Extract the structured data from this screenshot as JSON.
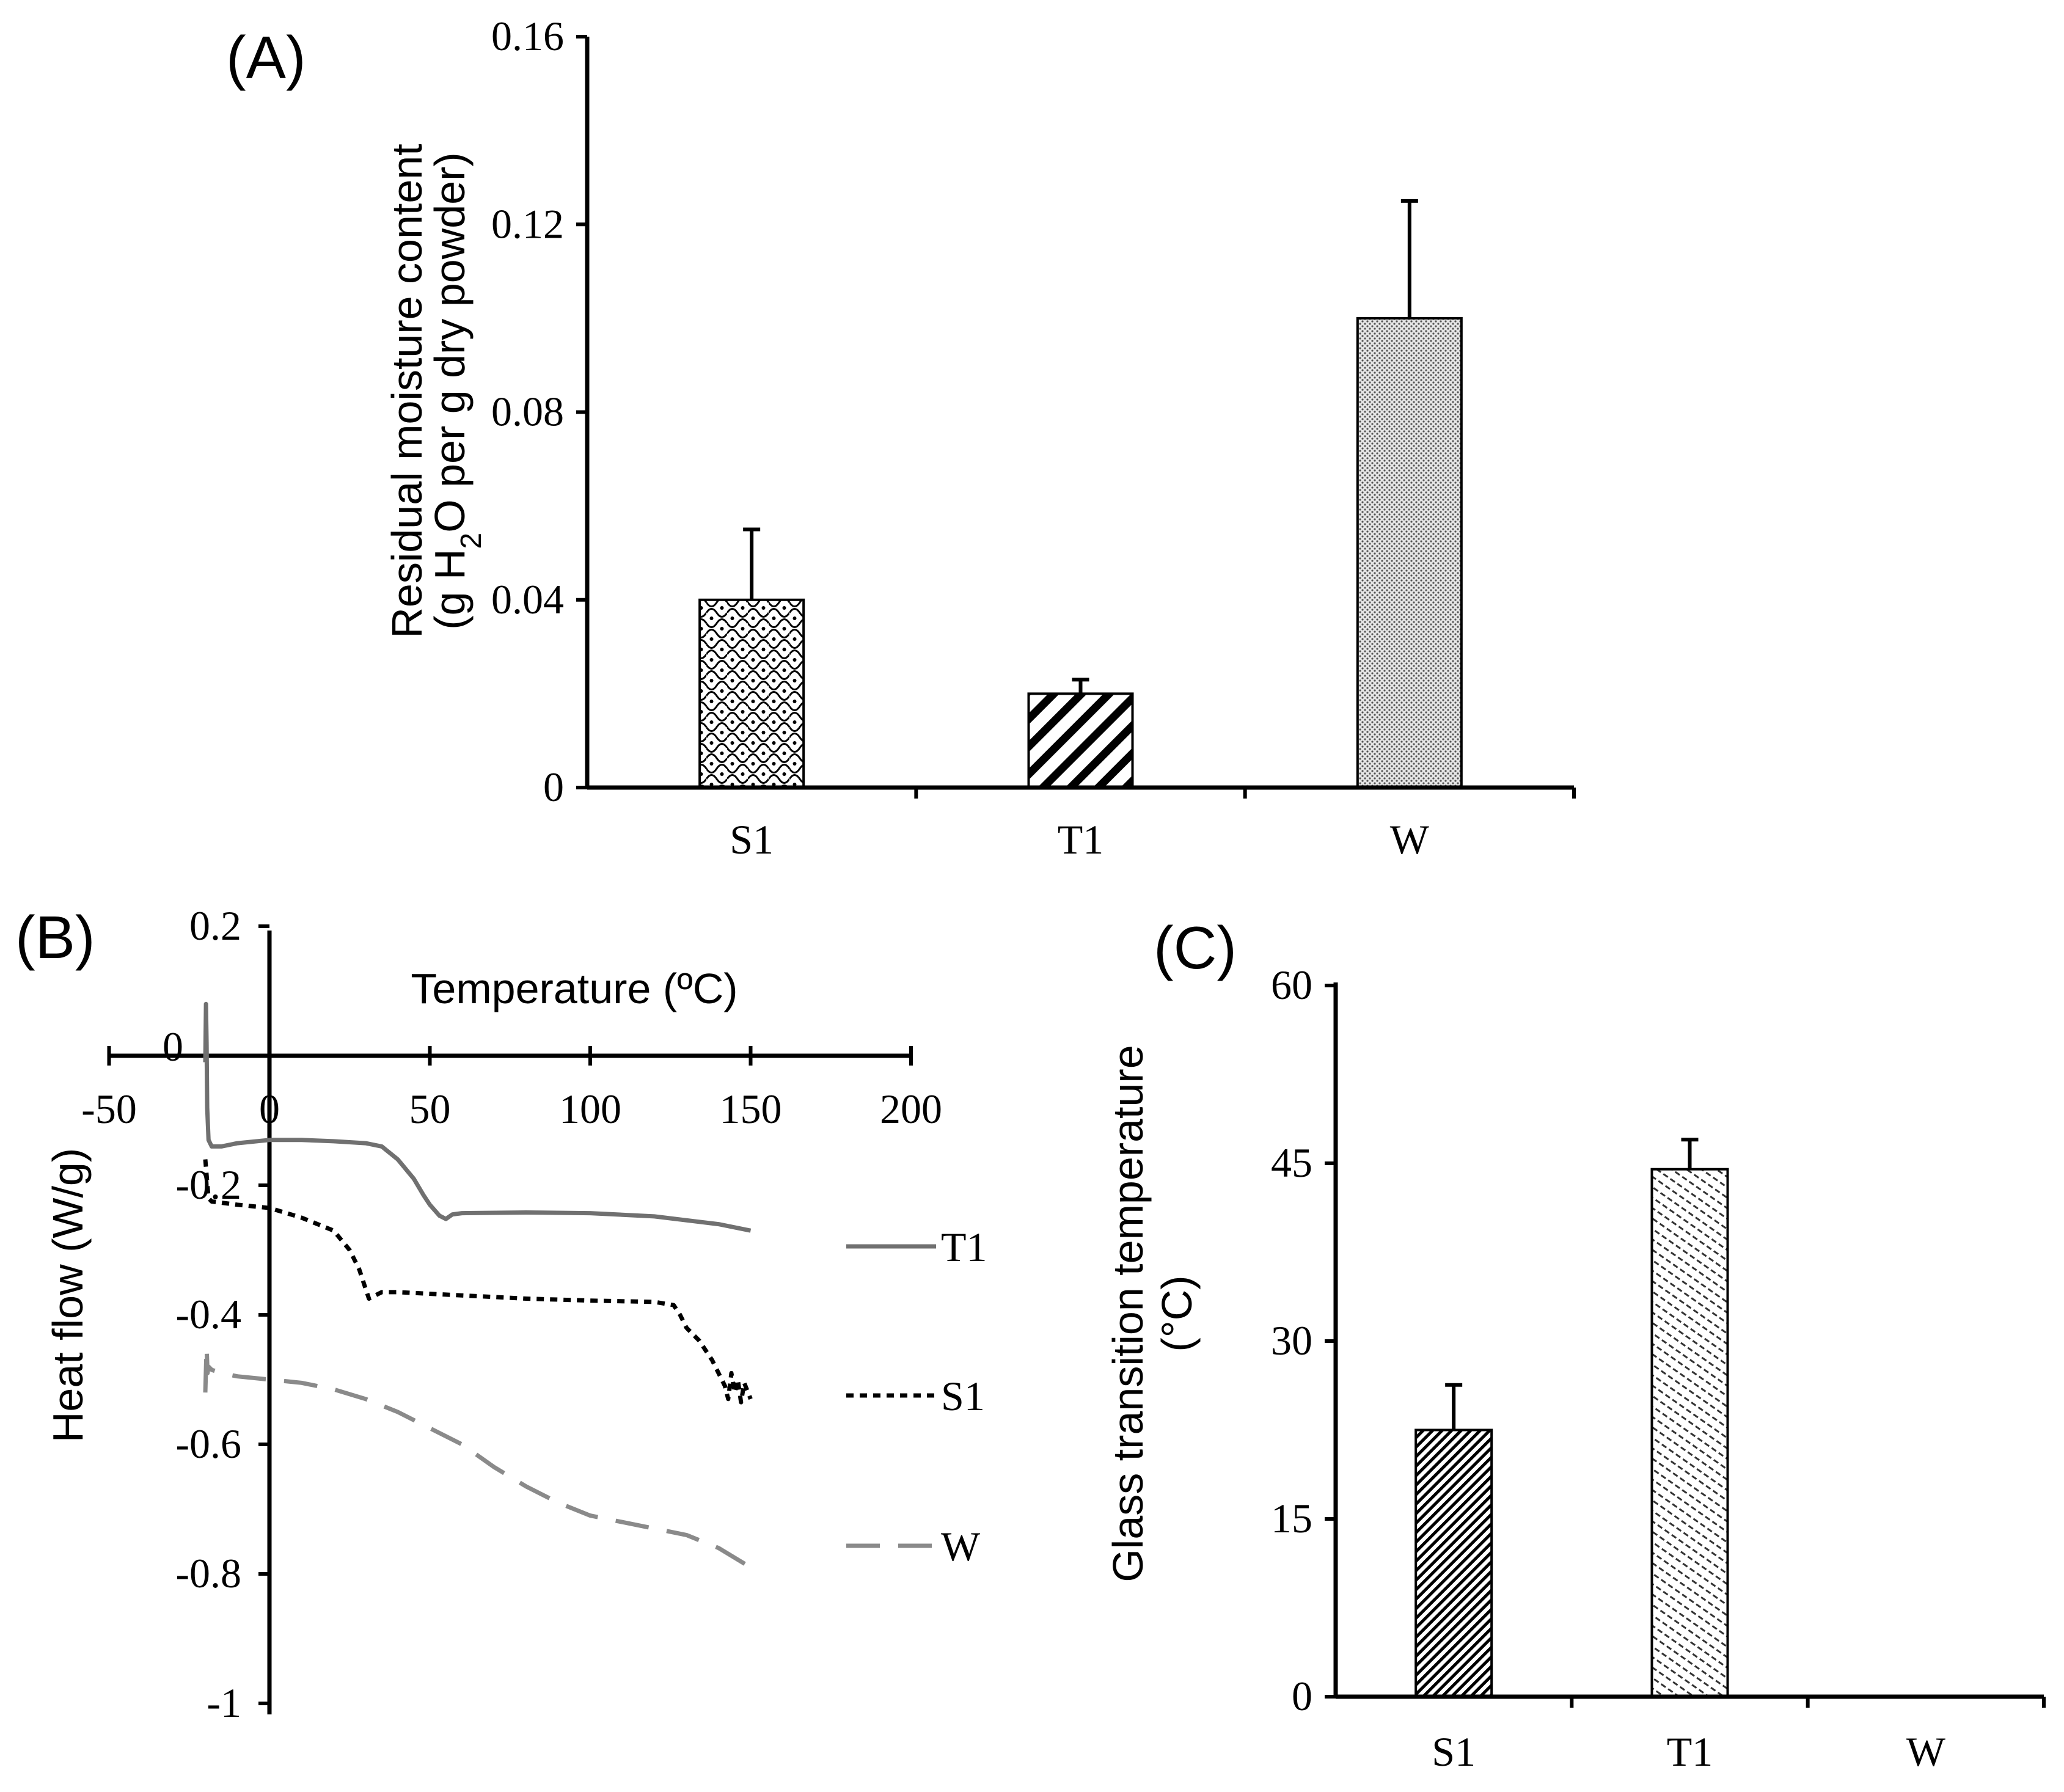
{
  "colors": {
    "ink": "#000000",
    "grey": "#707070",
    "light_grey": "#8a8a8a",
    "background": "#ffffff"
  },
  "chart_data": [
    {
      "panel": "(A)",
      "type": "bar",
      "ylabel_line1": "Residual moisture content",
      "ylabel_line2_a": "(g H",
      "ylabel_line2_sub": "2",
      "ylabel_line2_b": "O per g dry powder)",
      "categories": [
        "S1",
        "T1",
        "W"
      ],
      "values": [
        0.04,
        0.02,
        0.1
      ],
      "errors": [
        0.015,
        0.003,
        0.025
      ],
      "patterns": [
        "scallop",
        "diagonal-bold",
        "dots"
      ],
      "ylim": [
        0,
        0.16
      ],
      "yticks": [
        0,
        0.04,
        0.08,
        0.12,
        0.16
      ],
      "ytick_labels": [
        "0",
        "0.04",
        "0.08",
        "0.12",
        "0.16"
      ]
    },
    {
      "panel": "(B)",
      "type": "line",
      "xlabel": "Temperature (ºC)",
      "ylabel": "Heat flow (W/g)",
      "xlim": [
        -50,
        200
      ],
      "ylim": [
        -1,
        0.2
      ],
      "xticks": [
        -50,
        0,
        50,
        100,
        150,
        200
      ],
      "xtick_labels": [
        "-50",
        "0",
        "50",
        "100",
        "150",
        "200"
      ],
      "yticks": [
        0.2,
        0,
        -0.2,
        -0.4,
        -0.6,
        -0.8,
        -1
      ],
      "ytick_labels": [
        "0.2",
        "0",
        "-0.2",
        "-0.4",
        "-0.6",
        "-0.8",
        "-1"
      ],
      "series": [
        {
          "name": "T1",
          "style": "solid",
          "color": "#707070",
          "x": [
            -20,
            -19.8,
            -19.6,
            -19.4,
            -19,
            -18,
            -15,
            -10,
            0,
            10,
            20,
            30,
            35,
            40,
            45,
            48,
            50,
            53,
            55,
            57,
            60,
            80,
            100,
            120,
            140,
            150
          ],
          "y": [
            -0.01,
            0.08,
            0.02,
            -0.08,
            -0.13,
            -0.14,
            -0.14,
            -0.135,
            -0.13,
            -0.13,
            -0.132,
            -0.135,
            -0.14,
            -0.16,
            -0.19,
            -0.215,
            -0.23,
            -0.247,
            -0.252,
            -0.245,
            -0.243,
            -0.242,
            -0.243,
            -0.248,
            -0.26,
            -0.27
          ]
        },
        {
          "name": "S1",
          "style": "dotted",
          "color": "#000000",
          "x": [
            -20,
            -19,
            -18,
            -10,
            0,
            10,
            20,
            25,
            28,
            30,
            31,
            33,
            35,
            40,
            60,
            80,
            100,
            120,
            126,
            128,
            130,
            132,
            134,
            136,
            138,
            140,
            142,
            143,
            144,
            145,
            146,
            147,
            148,
            150
          ],
          "y": [
            -0.16,
            -0.22,
            -0.225,
            -0.23,
            -0.235,
            -0.25,
            -0.27,
            -0.3,
            -0.33,
            -0.36,
            -0.375,
            -0.37,
            -0.365,
            -0.365,
            -0.37,
            -0.375,
            -0.378,
            -0.38,
            -0.385,
            -0.4,
            -0.42,
            -0.43,
            -0.44,
            -0.455,
            -0.47,
            -0.49,
            -0.51,
            -0.53,
            -0.49,
            -0.52,
            -0.5,
            -0.535,
            -0.505,
            -0.53
          ]
        },
        {
          "name": "W",
          "style": "dashed",
          "color": "#8a8a8a",
          "x": [
            -20,
            -19.6,
            -19.3,
            -19,
            -18,
            -15,
            -10,
            0,
            10,
            20,
            30,
            40,
            50,
            60,
            70,
            80,
            90,
            100,
            110,
            120,
            130,
            140,
            150
          ],
          "y": [
            -0.52,
            -0.45,
            -0.49,
            -0.48,
            -0.485,
            -0.49,
            -0.495,
            -0.5,
            -0.505,
            -0.515,
            -0.53,
            -0.55,
            -0.575,
            -0.6,
            -0.635,
            -0.665,
            -0.69,
            -0.71,
            -0.72,
            -0.73,
            -0.74,
            -0.76,
            -0.79
          ]
        }
      ]
    },
    {
      "panel": "(C)",
      "type": "bar",
      "ylabel_line1": "Glass transition temperature",
      "ylabel_line2": "(°C)",
      "categories": [
        "S1",
        "T1",
        "W"
      ],
      "values": [
        22.5,
        44.5,
        0
      ],
      "errors": [
        3.8,
        2.5,
        0
      ],
      "patterns": [
        "diagonal-fine-dark",
        "diagonal-fine-light",
        "none"
      ],
      "ylim": [
        0,
        60
      ],
      "yticks": [
        0,
        15,
        30,
        45,
        60
      ],
      "ytick_labels": [
        "0",
        "15",
        "30",
        "45",
        "60"
      ]
    }
  ]
}
